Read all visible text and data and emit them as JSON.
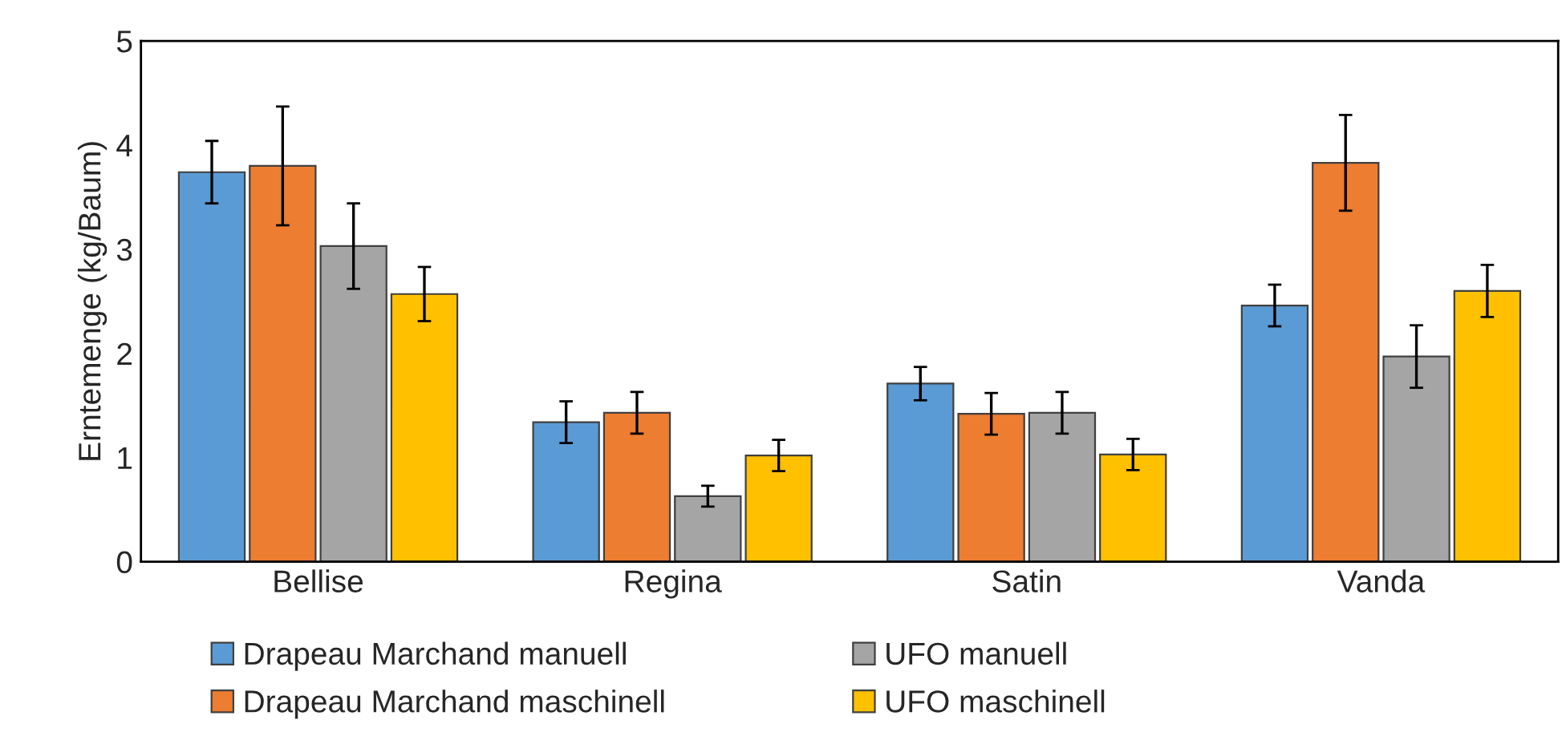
{
  "chart_data": {
    "type": "bar",
    "ylabel": "Erntemenge (kg/Baum)",
    "categories": [
      "Bellise",
      "Regina",
      "Satin",
      "Vanda"
    ],
    "series": [
      {
        "name": "Drapeau Marchand manuell",
        "color": "#5b9bd5",
        "values": [
          3.74,
          1.34,
          1.71,
          2.46
        ],
        "errors": [
          0.3,
          0.2,
          0.16,
          0.2
        ]
      },
      {
        "name": "Drapeau Marchand maschinell",
        "color": "#ed7d31",
        "values": [
          3.8,
          1.43,
          1.42,
          3.83
        ],
        "errors": [
          0.57,
          0.2,
          0.2,
          0.46
        ]
      },
      {
        "name": "UFO manuell",
        "color": "#a5a5a5",
        "values": [
          3.03,
          0.63,
          1.43,
          1.97
        ],
        "errors": [
          0.41,
          0.1,
          0.2,
          0.3
        ]
      },
      {
        "name": "UFO maschinell",
        "color": "#ffc000",
        "values": [
          2.57,
          1.02,
          1.03,
          2.6
        ],
        "errors": [
          0.26,
          0.15,
          0.15,
          0.25
        ]
      }
    ],
    "ylim": [
      0,
      5
    ],
    "yticks": [
      0,
      1,
      2,
      3,
      4,
      5
    ],
    "grid": false,
    "legend": "bottom"
  }
}
